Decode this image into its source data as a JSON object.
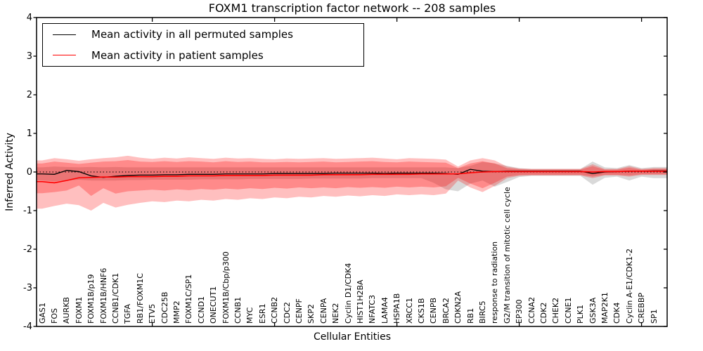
{
  "figure": {
    "background": "#ffffff",
    "frame_color": "#000000"
  },
  "chart_data": {
    "type": "line",
    "title": "FOXM1 transcription factor network -- 208 samples",
    "xlabel": "Cellular Entities",
    "ylabel": "Inferred Activity",
    "ylim": [
      -4,
      4
    ],
    "yticks": [
      4,
      3,
      2,
      1,
      0,
      -1,
      -2,
      -3,
      -4
    ],
    "grid": false,
    "zero_line": {
      "value": 0,
      "style": "dotted",
      "color": "#000000"
    },
    "legend_position": "upper left",
    "categories": [
      "GAS1",
      "FOS",
      "AURKB",
      "FOXM1",
      "FOXM1B/p19",
      "FOXM1B/HNF6",
      "CCNB1/CDK1",
      "TGFA",
      "RB1/FOXM1C",
      "ETV5",
      "CDC25B",
      "MMP2",
      "FOXM1C/SP1",
      "CCND1",
      "ONECUT1",
      "FOXM1B/Cbp/p300",
      "CCNB1",
      "MYC",
      "ESR1",
      "CCNB2",
      "CDC2",
      "CENPF",
      "SKP2",
      "CENPA",
      "NEK2",
      "Cyclin D1/CDK4",
      "HIST1H2BA",
      "NFATC3",
      "LAMA4",
      "HSPA1B",
      "XRCC1",
      "CKS1B",
      "CENPB",
      "BRCA2",
      "CDKN2A",
      "RB1",
      "BIRC5",
      "response to radiation",
      "G2/M transition of mitotic cell cycle",
      "EP300",
      "CCNA2",
      "CDK2",
      "CHEK2",
      "CCNE1",
      "PLK1",
      "GSK3A",
      "MAP2K1",
      "CDK4",
      "Cyclin A-E1/CDK1-2",
      "CREBBP",
      "SP1"
    ],
    "series": [
      {
        "name": "Mean activity in all permuted samples",
        "color": "#000000",
        "width": 1.3,
        "values": [
          -0.05,
          -0.06,
          0.04,
          0.01,
          -0.1,
          -0.14,
          -0.11,
          -0.09,
          -0.08,
          -0.08,
          -0.07,
          -0.07,
          -0.06,
          -0.06,
          -0.06,
          -0.05,
          -0.05,
          -0.05,
          -0.05,
          -0.04,
          -0.04,
          -0.04,
          -0.04,
          -0.04,
          -0.03,
          -0.03,
          -0.03,
          -0.03,
          -0.04,
          -0.03,
          -0.03,
          -0.03,
          -0.03,
          -0.04,
          -0.06,
          0.07,
          0.02,
          0.01,
          0.02,
          0.02,
          0.02,
          0.02,
          0.02,
          0.02,
          0.02,
          -0.04,
          0.0,
          0.01,
          0.02,
          0.02,
          0.03
        ]
      },
      {
        "name": "Mean activity in patient samples",
        "color": "#ff0000",
        "width": 1.6,
        "values": [
          -0.25,
          -0.28,
          -0.22,
          -0.15,
          -0.14,
          -0.13,
          -0.13,
          -0.12,
          -0.12,
          -0.12,
          -0.11,
          -0.11,
          -0.1,
          -0.1,
          -0.1,
          -0.09,
          -0.09,
          -0.09,
          -0.09,
          -0.08,
          -0.08,
          -0.08,
          -0.08,
          -0.07,
          -0.07,
          -0.07,
          -0.07,
          -0.06,
          -0.06,
          -0.06,
          -0.06,
          -0.05,
          -0.05,
          -0.05,
          -0.05,
          -0.02,
          0.0,
          0.01,
          0.01,
          0.01,
          0.01,
          0.01,
          0.01,
          0.01,
          0.01,
          0.0,
          0.01,
          0.01,
          0.02,
          0.02,
          0.02
        ]
      }
    ],
    "bands": [
      {
        "name": "permuted samples range",
        "color": "#808080",
        "opacity": 0.3,
        "upper": [
          0.12,
          0.14,
          0.13,
          0.12,
          0.13,
          0.12,
          0.13,
          0.12,
          0.12,
          0.12,
          0.12,
          0.12,
          0.12,
          0.12,
          0.12,
          0.12,
          0.12,
          0.12,
          0.12,
          0.12,
          0.12,
          0.12,
          0.12,
          0.12,
          0.12,
          0.12,
          0.12,
          0.12,
          0.12,
          0.12,
          0.12,
          0.12,
          0.12,
          0.12,
          0.1,
          0.16,
          0.26,
          0.22,
          0.16,
          0.1,
          0.08,
          0.08,
          0.08,
          0.08,
          0.08,
          0.27,
          0.12,
          0.1,
          0.18,
          0.1,
          0.13
        ],
        "lower": [
          -0.22,
          -0.24,
          -0.22,
          -0.2,
          -0.22,
          -0.22,
          -0.22,
          -0.21,
          -0.21,
          -0.2,
          -0.2,
          -0.2,
          -0.2,
          -0.19,
          -0.19,
          -0.19,
          -0.19,
          -0.18,
          -0.18,
          -0.18,
          -0.18,
          -0.18,
          -0.17,
          -0.17,
          -0.17,
          -0.17,
          -0.17,
          -0.16,
          -0.16,
          -0.16,
          -0.16,
          -0.16,
          -0.28,
          -0.45,
          -0.5,
          -0.3,
          -0.22,
          -0.38,
          -0.26,
          -0.13,
          -0.1,
          -0.1,
          -0.1,
          -0.1,
          -0.1,
          -0.33,
          -0.15,
          -0.12,
          -0.22,
          -0.12,
          -0.16
        ]
      },
      {
        "name": "patient samples range outer",
        "color": "#ff0000",
        "opacity": 0.25,
        "upper": [
          0.3,
          0.36,
          0.33,
          0.29,
          0.33,
          0.36,
          0.38,
          0.42,
          0.37,
          0.34,
          0.37,
          0.35,
          0.38,
          0.36,
          0.34,
          0.37,
          0.35,
          0.36,
          0.34,
          0.33,
          0.35,
          0.34,
          0.35,
          0.36,
          0.34,
          0.35,
          0.36,
          0.37,
          0.35,
          0.33,
          0.36,
          0.35,
          0.34,
          0.32,
          0.14,
          0.3,
          0.36,
          0.3,
          0.14,
          0.09,
          0.08,
          0.08,
          0.08,
          0.08,
          0.08,
          0.2,
          0.08,
          0.08,
          0.15,
          0.08,
          0.1
        ],
        "lower": [
          -0.95,
          -0.88,
          -0.82,
          -0.86,
          -1.0,
          -0.8,
          -0.92,
          -0.85,
          -0.8,
          -0.76,
          -0.78,
          -0.74,
          -0.76,
          -0.72,
          -0.74,
          -0.7,
          -0.72,
          -0.68,
          -0.7,
          -0.66,
          -0.68,
          -0.64,
          -0.66,
          -0.62,
          -0.64,
          -0.61,
          -0.63,
          -0.6,
          -0.62,
          -0.58,
          -0.6,
          -0.58,
          -0.6,
          -0.56,
          -0.22,
          -0.4,
          -0.52,
          -0.36,
          -0.16,
          -0.1,
          -0.09,
          -0.09,
          -0.09,
          -0.09,
          -0.09,
          -0.16,
          -0.09,
          -0.09,
          -0.12,
          -0.08,
          -0.08
        ]
      },
      {
        "name": "patient samples range inner",
        "color": "#ff0000",
        "opacity": 0.28,
        "upper": [
          0.22,
          0.27,
          0.24,
          0.21,
          0.24,
          0.27,
          0.28,
          0.31,
          0.27,
          0.26,
          0.28,
          0.26,
          0.28,
          0.27,
          0.25,
          0.28,
          0.26,
          0.27,
          0.25,
          0.25,
          0.26,
          0.25,
          0.26,
          0.27,
          0.25,
          0.26,
          0.27,
          0.28,
          0.26,
          0.25,
          0.27,
          0.26,
          0.25,
          0.24,
          0.1,
          0.22,
          0.28,
          0.22,
          0.1,
          0.07,
          0.06,
          0.06,
          0.06,
          0.06,
          0.06,
          0.15,
          0.06,
          0.06,
          0.11,
          0.06,
          0.08
        ],
        "lower": [
          -0.55,
          -0.52,
          -0.48,
          -0.35,
          -0.62,
          -0.42,
          -0.56,
          -0.5,
          -0.48,
          -0.46,
          -0.48,
          -0.45,
          -0.47,
          -0.44,
          -0.46,
          -0.43,
          -0.45,
          -0.42,
          -0.44,
          -0.41,
          -0.43,
          -0.4,
          -0.42,
          -0.4,
          -0.42,
          -0.39,
          -0.41,
          -0.39,
          -0.41,
          -0.38,
          -0.4,
          -0.38,
          -0.4,
          -0.37,
          -0.15,
          -0.3,
          -0.42,
          -0.28,
          -0.12,
          -0.08,
          -0.07,
          -0.07,
          -0.07,
          -0.07,
          -0.07,
          -0.12,
          -0.07,
          -0.07,
          -0.09,
          -0.06,
          -0.06
        ]
      }
    ],
    "xticks_marked_indices": [
      9,
      19,
      29,
      39,
      49
    ]
  }
}
